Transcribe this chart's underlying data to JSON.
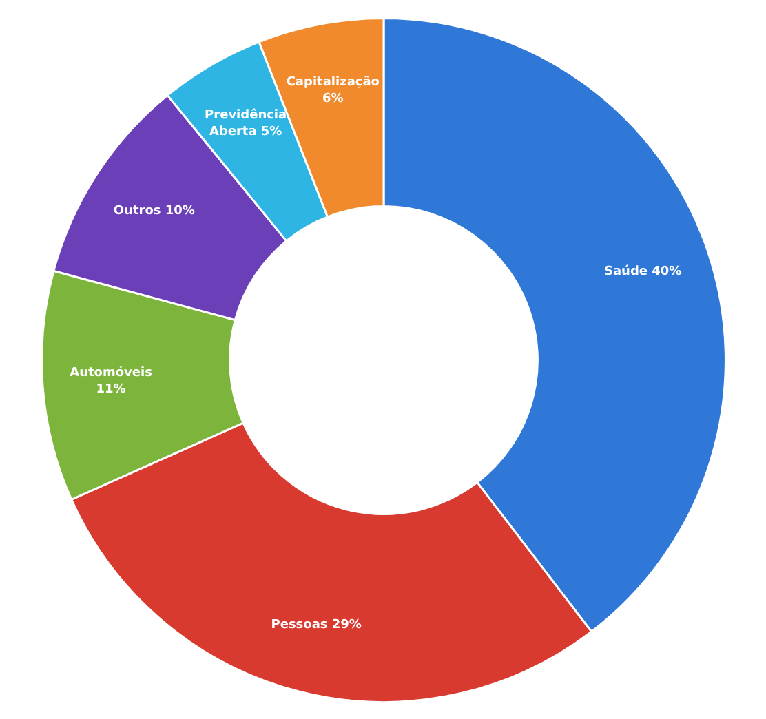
{
  "chart_data": {
    "type": "donut",
    "categories": [
      "Saúde",
      "Pessoas",
      "Automóveis",
      "Outros",
      "Previdência Aberta",
      "Capitalização"
    ],
    "values": [
      40,
      29,
      11,
      10,
      5,
      6
    ],
    "colors": [
      "#2f78d8",
      "#d93a30",
      "#7db53c",
      "#6b3fb8",
      "#2fb5e3",
      "#f08a2c"
    ],
    "value_labels": [
      "40%",
      "29%",
      "11%",
      "10%",
      "5%",
      "6%"
    ]
  }
}
